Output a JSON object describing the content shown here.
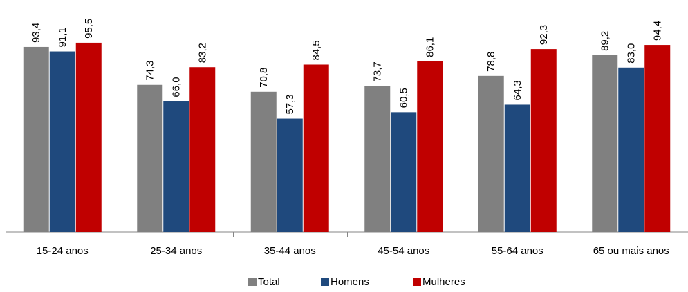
{
  "chart_data": {
    "type": "bar",
    "categories": [
      "15-24 anos",
      "25-34 anos",
      "35-44 anos",
      "45-54 anos",
      "55-64 anos",
      "65 ou mais anos"
    ],
    "series": [
      {
        "name": "Total",
        "color": "#808080",
        "values": [
          93.4,
          74.3,
          70.8,
          73.7,
          78.8,
          89.2
        ],
        "labels": [
          "93,4",
          "74,3",
          "70,8",
          "73,7",
          "78,8",
          "89,2"
        ]
      },
      {
        "name": "Homens",
        "color": "#1F497D",
        "values": [
          91.1,
          66.0,
          57.3,
          60.5,
          64.3,
          83.0
        ],
        "labels": [
          "91,1",
          "66,0",
          "57,3",
          "60,5",
          "64,3",
          "83,0"
        ]
      },
      {
        "name": "Mulheres",
        "color": "#C00000",
        "values": [
          95.5,
          83.2,
          84.5,
          86.1,
          92.3,
          94.4
        ],
        "labels": [
          "95,5",
          "83,2",
          "84,5",
          "86,1",
          "92,3",
          "94,4"
        ]
      }
    ],
    "ylim": [
      0,
      100
    ],
    "title": "",
    "xlabel": "",
    "ylabel": "",
    "grid": false,
    "legend_position": "bottom"
  }
}
